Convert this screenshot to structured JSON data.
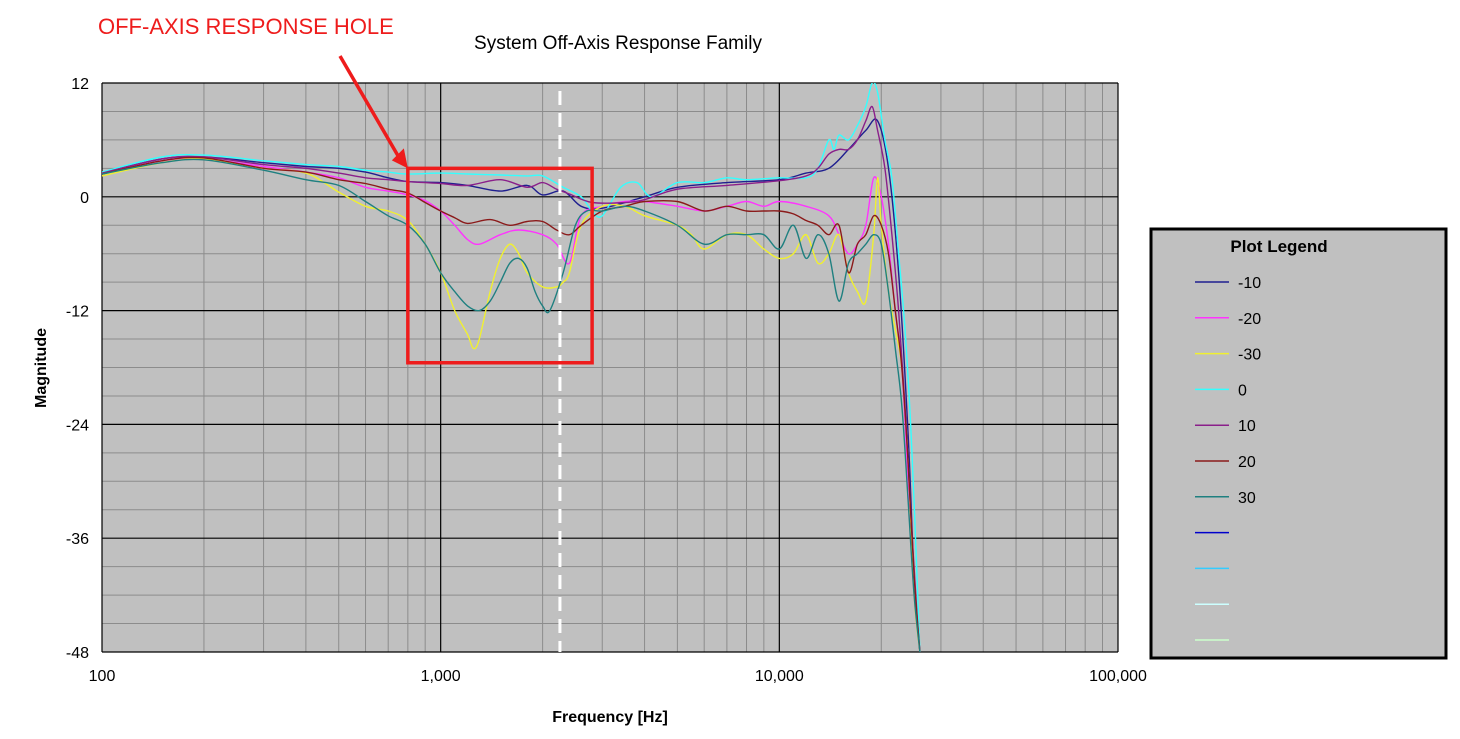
{
  "annotation": {
    "label": "OFF-AXIS RESPONSE HOLE",
    "color": "#ee1c1c",
    "box": {
      "x_range_hz": [
        800,
        2800
      ],
      "y_range": [
        -17.5,
        3
      ]
    },
    "marker_line_hz": 2250
  },
  "chart_data": {
    "type": "line",
    "title": "System Off-Axis Response Family",
    "xlabel": "Frequency [Hz]",
    "ylabel": "Magnitude",
    "x_scale": "log",
    "xlim": [
      100,
      100000
    ],
    "ylim": [
      -48,
      12
    ],
    "x_ticks": [
      100,
      1000,
      10000,
      100000
    ],
    "x_tick_labels": [
      "100",
      "1,000",
      "10,000",
      "100,000"
    ],
    "y_ticks": [
      12,
      0,
      -12,
      -24,
      -36,
      -48
    ],
    "y_tick_labels": [
      "12",
      "0",
      "-12",
      "-24",
      "-36",
      "-48"
    ],
    "grid": true,
    "plot_background": "#c0c0c0",
    "legend": {
      "title": "Plot Legend",
      "placement": "right",
      "entries": [
        {
          "label": "-10",
          "color": "#1f1f8f"
        },
        {
          "label": "-20",
          "color": "#ff33ff"
        },
        {
          "label": "-30",
          "color": "#f0f030"
        },
        {
          "label": "0",
          "color": "#33ffff"
        },
        {
          "label": "10",
          "color": "#8a1f8a"
        },
        {
          "label": "20",
          "color": "#8b1a1a"
        },
        {
          "label": "30",
          "color": "#1f8080"
        },
        {
          "label": "",
          "color": "#0000cc"
        },
        {
          "label": "",
          "color": "#33ccff"
        },
        {
          "label": "",
          "color": "#ccffff"
        },
        {
          "label": "",
          "color": "#ccffcc"
        }
      ]
    },
    "series": [
      {
        "name": "-10",
        "color": "#1f1f8f",
        "x": [
          100,
          150,
          200,
          300,
          400,
          500,
          600,
          700,
          800,
          1000,
          1200,
          1500,
          1800,
          2000,
          2300,
          2600,
          3000,
          4000,
          5000,
          7000,
          10000,
          12000,
          14000,
          16000,
          18000,
          19500,
          21000,
          22500,
          24000,
          25000,
          26000
        ],
        "y": [
          2.5,
          4,
          4.2,
          3.6,
          3.2,
          3,
          2.6,
          2,
          1.6,
          1.5,
          1.2,
          0.6,
          1.2,
          0.2,
          0.6,
          -1,
          -1.2,
          0,
          1,
          1.5,
          1.8,
          2.5,
          3,
          5,
          7,
          8,
          3,
          -8,
          -25,
          -40,
          -48
        ]
      },
      {
        "name": "-20",
        "color": "#ff33ff",
        "x": [
          100,
          150,
          200,
          300,
          400,
          500,
          600,
          700,
          800,
          900,
          1000,
          1100,
          1200,
          1300,
          1500,
          1700,
          2000,
          2200,
          2400,
          2600,
          3000,
          3500,
          4000,
          5000,
          6000,
          7000,
          8000,
          9000,
          10000,
          12000,
          14000,
          15000,
          16000,
          17000,
          18000,
          19000,
          20000,
          21000,
          22000,
          23000,
          24000,
          25000,
          26000
        ],
        "y": [
          2.4,
          3.8,
          4,
          3.2,
          2.6,
          2,
          1,
          0.6,
          0.2,
          -0.4,
          -1.5,
          -3,
          -4.5,
          -5,
          -4,
          -3.5,
          -4,
          -5,
          -7,
          -2,
          -1,
          -0.5,
          -0.5,
          -1,
          -1.5,
          -1,
          -0.5,
          -1,
          -0.5,
          -1,
          -2,
          -4,
          -6,
          -5,
          -3,
          2,
          0,
          -5,
          -12,
          -18,
          -30,
          -42,
          -48
        ]
      },
      {
        "name": "-30",
        "color": "#f0f030",
        "x": [
          100,
          150,
          200,
          300,
          400,
          500,
          600,
          700,
          800,
          900,
          1000,
          1100,
          1200,
          1250,
          1300,
          1400,
          1500,
          1600,
          1700,
          1800,
          2000,
          2200,
          2300,
          2400,
          2600,
          3000,
          3500,
          4000,
          5000,
          5500,
          6000,
          7000,
          8000,
          9000,
          10000,
          11000,
          12000,
          13000,
          14000,
          15000,
          16000,
          17000,
          18000,
          19000,
          19500,
          20000,
          21000,
          22000,
          23000,
          24000,
          25000,
          26000
        ],
        "y": [
          2.2,
          3.6,
          4,
          3,
          2.5,
          0.5,
          -1,
          -1.5,
          -2.5,
          -5,
          -8,
          -12,
          -14.5,
          -16,
          -15,
          -10,
          -6.5,
          -5,
          -6,
          -8,
          -9.5,
          -9.5,
          -9,
          -8,
          -3,
          -1,
          -1,
          -2,
          -3,
          -4,
          -5.5,
          -4,
          -4,
          -5.5,
          -6.5,
          -6,
          -4,
          -7,
          -6,
          -4,
          -8,
          -10,
          -11,
          -4,
          2,
          -3,
          -10,
          -14,
          -18,
          -28,
          -42,
          -48
        ]
      },
      {
        "name": "0",
        "color": "#33ffff",
        "x": [
          100,
          150,
          200,
          300,
          400,
          500,
          600,
          700,
          800,
          1000,
          1200,
          1500,
          1800,
          2000,
          2300,
          2600,
          2800,
          3000,
          3400,
          3800,
          4200,
          5000,
          6000,
          7000,
          8000,
          10000,
          12000,
          13000,
          14000,
          14500,
          15000,
          16000,
          17000,
          18000,
          18800,
          19500,
          20500,
          21500,
          22500,
          23500,
          24500,
          25500,
          26000
        ],
        "y": [
          2.6,
          4.2,
          4.4,
          3.8,
          3.4,
          3.2,
          2.8,
          2.6,
          2.4,
          2.5,
          2.4,
          2.3,
          2.2,
          2.2,
          1,
          0,
          -1.5,
          -2,
          1,
          1.5,
          0,
          1.5,
          1.5,
          2,
          1.8,
          2,
          2,
          3,
          6,
          5,
          6.5,
          6,
          7.5,
          9.5,
          12,
          11,
          6,
          2,
          -6,
          -14,
          -25,
          -40,
          -48
        ]
      },
      {
        "name": "10",
        "color": "#8a1f8a",
        "x": [
          100,
          150,
          200,
          300,
          400,
          500,
          600,
          700,
          800,
          1000,
          1200,
          1500,
          1800,
          2000,
          2200,
          2400,
          2800,
          3500,
          4000,
          5000,
          7000,
          10000,
          12000,
          13000,
          14000,
          15000,
          16000,
          17000,
          18000,
          18800,
          19500,
          20500,
          21500,
          22500,
          23500,
          24500,
          25500,
          26000
        ],
        "y": [
          2.5,
          4,
          4.2,
          3.4,
          3,
          2.5,
          2,
          1.8,
          1.6,
          1.4,
          1.2,
          1.8,
          1,
          1.5,
          0.8,
          0.3,
          -0.6,
          -0.6,
          -0.3,
          0.8,
          1.2,
          1.7,
          2.2,
          3,
          4.5,
          5,
          5,
          6,
          8,
          9.5,
          7,
          3,
          -4,
          -12,
          -22,
          -34,
          -44,
          -48
        ]
      },
      {
        "name": "20",
        "color": "#8b1a1a",
        "x": [
          100,
          150,
          200,
          300,
          400,
          500,
          600,
          700,
          800,
          900,
          1000,
          1100,
          1200,
          1400,
          1600,
          1800,
          2000,
          2200,
          2400,
          2600,
          3000,
          3500,
          4000,
          5000,
          6000,
          7000,
          8000,
          9000,
          10000,
          11000,
          12000,
          13000,
          14000,
          15000,
          16000,
          17000,
          18000,
          19000,
          20000,
          21000,
          22000,
          23000,
          24000,
          25000,
          26000
        ],
        "y": [
          2.4,
          3.8,
          4.1,
          3,
          2.6,
          1.8,
          1.4,
          0.8,
          0.4,
          -0.6,
          -1.5,
          -2.2,
          -2.8,
          -2.4,
          -3,
          -2.6,
          -2.6,
          -3.5,
          -4,
          -3,
          -1.5,
          -1,
          -0.5,
          -0.5,
          -1.5,
          -1,
          -1.5,
          -1.5,
          -1.5,
          -1.8,
          -2.5,
          -3,
          -4,
          -3,
          -8,
          -5,
          -4,
          -2,
          -3,
          -6,
          -12,
          -18,
          -28,
          -40,
          -48
        ]
      },
      {
        "name": "30",
        "color": "#1f8080",
        "x": [
          100,
          150,
          200,
          300,
          400,
          500,
          600,
          700,
          800,
          900,
          1000,
          1100,
          1200,
          1300,
          1400,
          1500,
          1600,
          1700,
          1800,
          1900,
          2000,
          2100,
          2300,
          2500,
          2700,
          3000,
          3500,
          4000,
          5000,
          6000,
          7000,
          8000,
          9000,
          10000,
          11000,
          12000,
          13000,
          14000,
          15000,
          16000,
          17000,
          18000,
          19000,
          20000,
          21000,
          22000,
          23000,
          24000,
          25000,
          26000
        ],
        "y": [
          2.4,
          3.6,
          3.9,
          2.8,
          1.8,
          1.2,
          -0.5,
          -2,
          -3,
          -5,
          -8,
          -10,
          -11.5,
          -12,
          -11,
          -9,
          -7,
          -6.5,
          -7.5,
          -10,
          -11.5,
          -12,
          -8,
          -3,
          -1.5,
          -1.5,
          -1,
          -1.5,
          -3,
          -5,
          -4,
          -4,
          -4,
          -5.5,
          -3,
          -6.5,
          -4,
          -6,
          -11,
          -7,
          -6,
          -5,
          -4,
          -5,
          -10,
          -16,
          -22,
          -32,
          -42,
          -48
        ]
      }
    ]
  }
}
